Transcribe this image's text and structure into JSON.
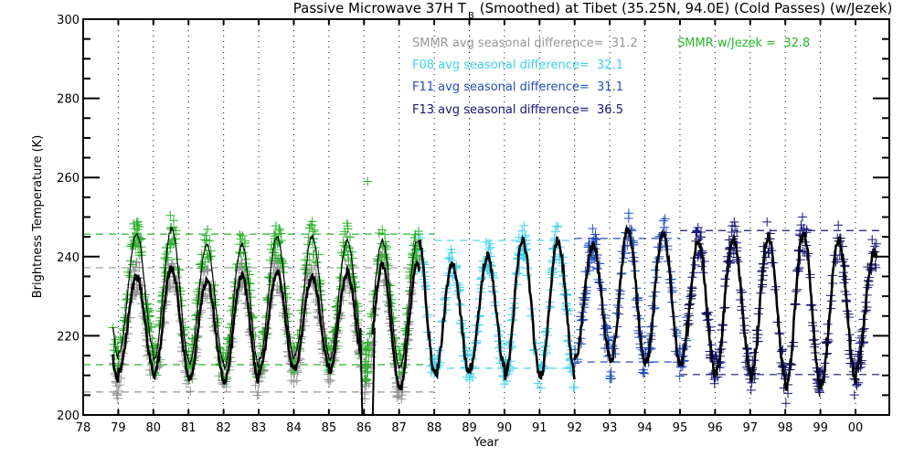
{
  "chart_data": {
    "type": "scatter",
    "title_main": "Passive Microwave 37H T",
    "title_subscript": "B",
    "title_rest": " (Smoothed) at Tibet (35.25N, 94.0E) (Cold Passes) (w/Jezek)",
    "xlabel": "Year",
    "ylabel": "Brightness Temperature (K)",
    "xlim": [
      78,
      101
    ],
    "ylim": [
      200,
      300
    ],
    "x_ticks": [
      78,
      79,
      80,
      81,
      82,
      83,
      84,
      85,
      86,
      87,
      88,
      89,
      90,
      91,
      92,
      93,
      94,
      95,
      96,
      97,
      98,
      99,
      100
    ],
    "x_tick_labels": [
      "78",
      "79",
      "80",
      "81",
      "82",
      "83",
      "84",
      "85",
      "86",
      "87",
      "88",
      "89",
      "90",
      "91",
      "92",
      "93",
      "94",
      "95",
      "96",
      "97",
      "98",
      "99",
      "00"
    ],
    "y_ticks": [
      200,
      220,
      240,
      260,
      280,
      300
    ],
    "y_tick_labels": [
      "200",
      "220",
      "240",
      "260",
      "280",
      "300"
    ],
    "y_minor_step": 5,
    "grid": "vertical dotted at each year",
    "annotations": [
      {
        "text": "SMMR avg seasonal difference=  31.2",
        "color": "#969696"
      },
      {
        "text": "SMMR w/Jezek =  32.8",
        "color": "#28b428"
      },
      {
        "text": "F08 avg seasonal difference=  32.1",
        "color": "#3cd2ee"
      },
      {
        "text": "F11 avg seasonal difference=  31.1",
        "color": "#1e4ec4"
      },
      {
        "text": "F13 avg seasonal difference=  36.5",
        "color": "#14147a"
      }
    ],
    "series": [
      {
        "name": "SMMR",
        "color": "#969696",
        "marker": "plus",
        "x_range": [
          78.85,
          87.6
        ],
        "avg_seasonal_difference": 31.2,
        "mean_summer_level": 237.2,
        "mean_winter_level": 205.8,
        "seasonal_peaks": [
          233,
          235,
          237,
          234,
          235,
          236,
          235,
          236,
          238
        ],
        "seasonal_troughs": [
          208,
          211,
          210,
          209,
          208,
          211,
          212,
          211,
          207
        ]
      },
      {
        "name": "SMMR w/Jezek",
        "color": "#28b428",
        "marker": "plus",
        "x_range": [
          78.85,
          87.6
        ],
        "avg_seasonal_difference": 32.8,
        "mean_summer_level": 245.7,
        "mean_winter_level": 212.7,
        "seasonal_peaks": [
          247,
          246,
          247,
          243,
          243,
          245,
          245,
          244,
          244
        ],
        "seasonal_troughs": [
          214,
          216,
          214,
          213,
          212,
          214,
          215,
          214,
          212
        ]
      },
      {
        "name": "F08",
        "color": "#3cd2ee",
        "marker": "plus",
        "x_range": [
          87.6,
          92.0
        ],
        "avg_seasonal_difference": 32.1,
        "mean_summer_level": 244.1,
        "mean_winter_level": 211.8,
        "seasonal_peaks": [
          246,
          238,
          240,
          244
        ],
        "seasonal_troughs": [
          211,
          210,
          212,
          210
        ]
      },
      {
        "name": "F11",
        "color": "#1e4ec4",
        "marker": "plus",
        "x_range": [
          92.0,
          95.2
        ],
        "avg_seasonal_difference": 31.1,
        "mean_summer_level": 244.6,
        "mean_winter_level": 213.4,
        "seasonal_peaks": [
          243,
          247,
          246
        ],
        "seasonal_troughs": [
          215,
          213,
          213
        ]
      },
      {
        "name": "F13",
        "color": "#14147a",
        "marker": "plus",
        "x_range": [
          95.2,
          100.6
        ],
        "avg_seasonal_difference": 36.5,
        "mean_summer_level": 246.6,
        "mean_winter_level": 210.2,
        "seasonal_peaks": [
          244,
          245,
          245,
          246,
          244,
          241
        ],
        "seasonal_troughs": [
          210,
          211,
          209,
          207,
          208,
          211
        ]
      },
      {
        "name": "Smoothed",
        "color": "#000000",
        "marker": "line",
        "x_range": [
          78.85,
          100.6
        ],
        "note": "Thick black smoothed curve through SMMR and SSM/I; thin black curve through Jezek-corrected SMMR; gap/dropout near 86"
      }
    ],
    "reference_lines": [
      {
        "series": "SMMR",
        "values": [
          237.2,
          205.8
        ],
        "x_range": [
          78,
          88
        ],
        "style": "dashed",
        "color": "#969696"
      },
      {
        "series": "SMMR w/Jezek",
        "values": [
          245.7,
          212.7
        ],
        "x_range": [
          78,
          88
        ],
        "style": "dashed",
        "color": "#28b428"
      },
      {
        "series": "F08",
        "values": [
          244.1,
          211.8
        ],
        "x_range": [
          88,
          92
        ],
        "style": "dashed",
        "color": "#3cd2ee"
      },
      {
        "series": "F11",
        "values": [
          244.6,
          213.4
        ],
        "x_range": [
          92,
          95
        ],
        "style": "dashed",
        "color": "#1e4ec4"
      },
      {
        "series": "F13",
        "values": [
          246.6,
          210.2
        ],
        "x_range": [
          95,
          100.7
        ],
        "style": "dashed",
        "color": "#14147a"
      }
    ],
    "outliers": [
      {
        "series": "SMMR w/Jezek",
        "x": 86.1,
        "y": 259
      }
    ]
  }
}
